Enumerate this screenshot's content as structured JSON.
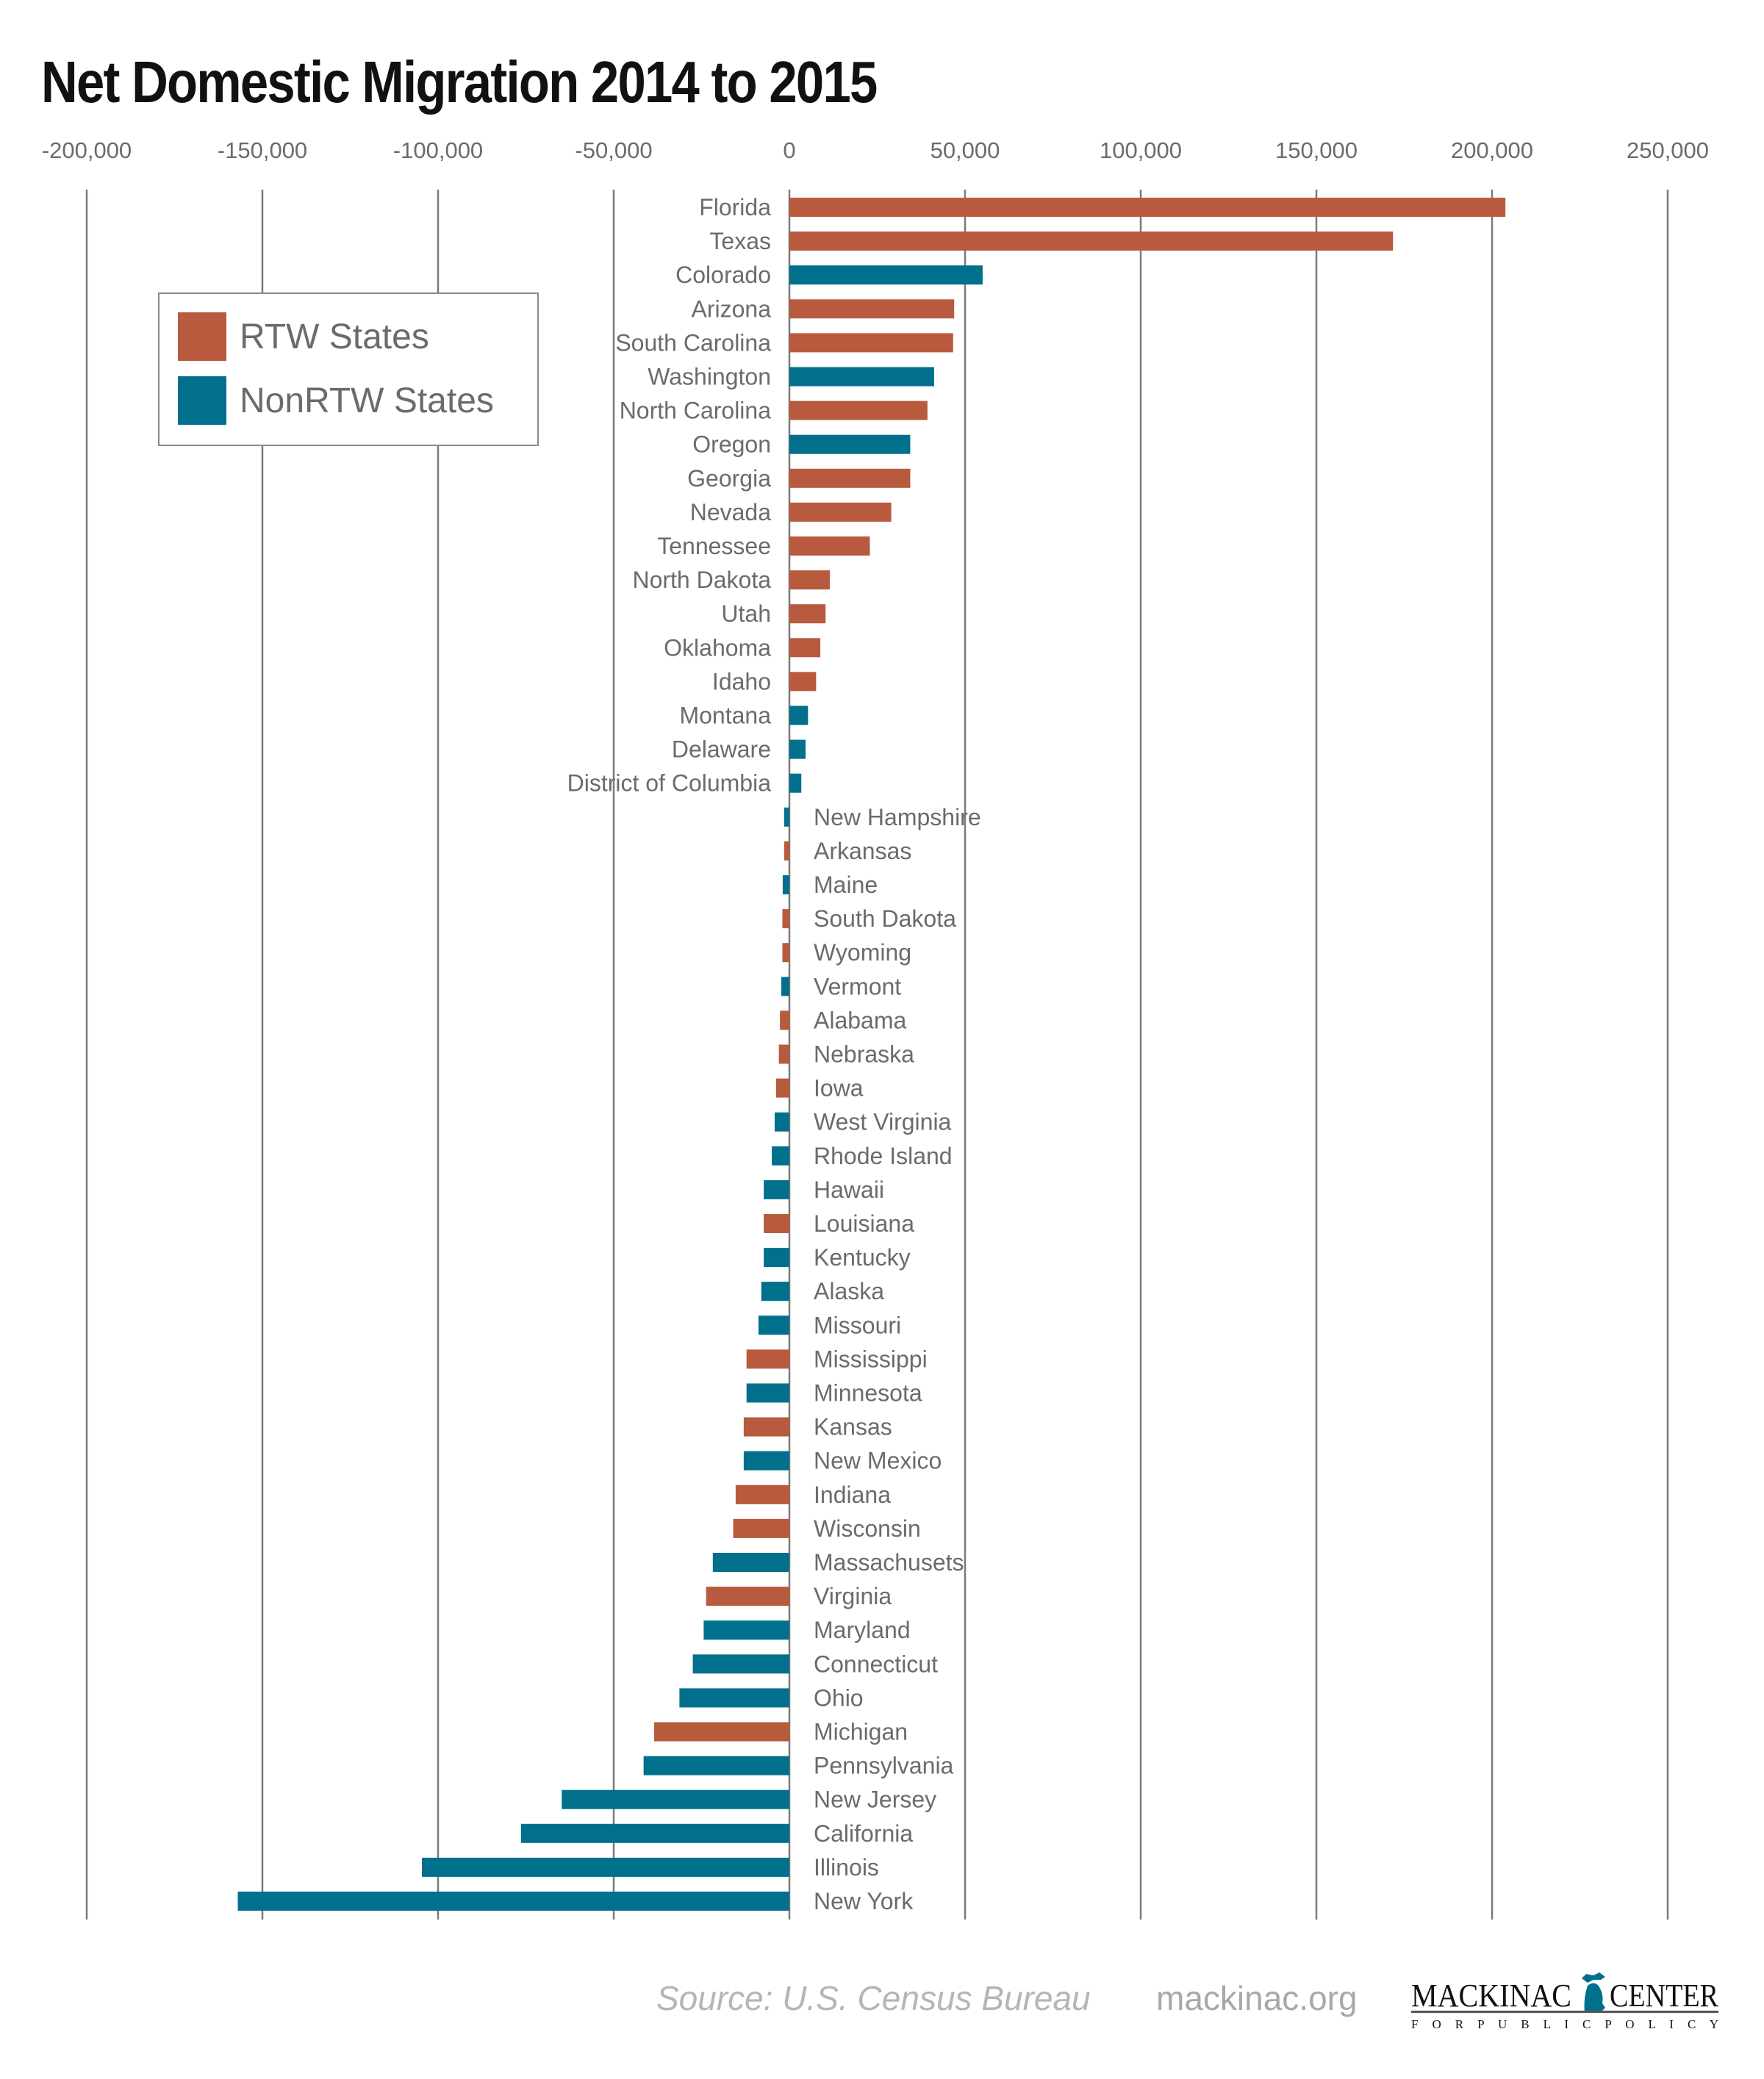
{
  "chart_data": {
    "type": "bar",
    "orientation": "horizontal",
    "title": "Net Domestic Migration 2014 to 2015",
    "xlim": [
      -200000,
      250000
    ],
    "xticks": [
      -200000,
      -150000,
      -100000,
      -50000,
      0,
      50000,
      100000,
      150000,
      200000,
      250000
    ],
    "xtick_labels": [
      "-200,000",
      "-150,000",
      "-100,000",
      "-50,000",
      "0",
      "50,000",
      "100,000",
      "150,000",
      "200,000",
      "250,000"
    ],
    "grid": true,
    "legend_position": "top-left",
    "series": [
      {
        "name": "RTW States",
        "color": "#b85a3e"
      },
      {
        "name": "NonRTW States",
        "color": "#00708c"
      }
    ],
    "categories": [
      "Florida",
      "Texas",
      "Colorado",
      "Arizona",
      "South Carolina",
      "Washington",
      "North Carolina",
      "Oregon",
      "Georgia",
      "Nevada",
      "Tennessee",
      "North Dakota",
      "Utah",
      "Oklahoma",
      "Idaho",
      "Montana",
      "Delaware",
      "District of Columbia",
      "New Hampshire",
      "Arkansas",
      "Maine",
      "South Dakota",
      "Wyoming",
      "Vermont",
      "Alabama",
      "Nebraska",
      "Iowa",
      "West Virginia",
      "Rhode Island",
      "Hawaii",
      "Louisiana",
      "Kentucky",
      "Alaska",
      "Missouri",
      "Mississippi",
      "Minnesota",
      "Kansas",
      "New Mexico",
      "Indiana",
      "Wisconsin",
      "Massachusets",
      "Virginia",
      "Maryland",
      "Connecticut",
      "Ohio",
      "Michigan",
      "Pennsylvania",
      "New Jersey",
      "California",
      "Illinois",
      "New York"
    ],
    "values": [
      203800,
      171800,
      55000,
      46900,
      46600,
      41200,
      39300,
      34400,
      34400,
      29000,
      22900,
      11500,
      10300,
      8800,
      7600,
      5300,
      4600,
      3400,
      -1500,
      -1500,
      -1900,
      -2000,
      -2000,
      -2300,
      -2700,
      -3000,
      -3800,
      -4200,
      -5000,
      -7300,
      -7300,
      -7300,
      -8000,
      -8800,
      -12200,
      -12200,
      -13000,
      -13000,
      -15300,
      -16000,
      -21800,
      -23700,
      -24400,
      -27500,
      -31300,
      -38500,
      -41500,
      -64800,
      -76400,
      -104600,
      -157000
    ],
    "group": [
      "RTW States",
      "RTW States",
      "NonRTW States",
      "RTW States",
      "RTW States",
      "NonRTW States",
      "RTW States",
      "NonRTW States",
      "RTW States",
      "RTW States",
      "RTW States",
      "RTW States",
      "RTW States",
      "RTW States",
      "RTW States",
      "NonRTW States",
      "NonRTW States",
      "NonRTW States",
      "NonRTW States",
      "RTW States",
      "NonRTW States",
      "RTW States",
      "RTW States",
      "NonRTW States",
      "RTW States",
      "RTW States",
      "RTW States",
      "NonRTW States",
      "NonRTW States",
      "NonRTW States",
      "RTW States",
      "NonRTW States",
      "NonRTW States",
      "NonRTW States",
      "RTW States",
      "NonRTW States",
      "RTW States",
      "NonRTW States",
      "RTW States",
      "RTW States",
      "NonRTW States",
      "RTW States",
      "NonRTW States",
      "NonRTW States",
      "NonRTW States",
      "RTW States",
      "NonRTW States",
      "NonRTW States",
      "NonRTW States",
      "NonRTW States",
      "NonRTW States"
    ]
  },
  "footer": {
    "source": "Source: U.S. Census Bureau",
    "site": "mackinac.org",
    "logo_text": "MACKINAC CENTER FOR PUBLIC POLICY"
  }
}
